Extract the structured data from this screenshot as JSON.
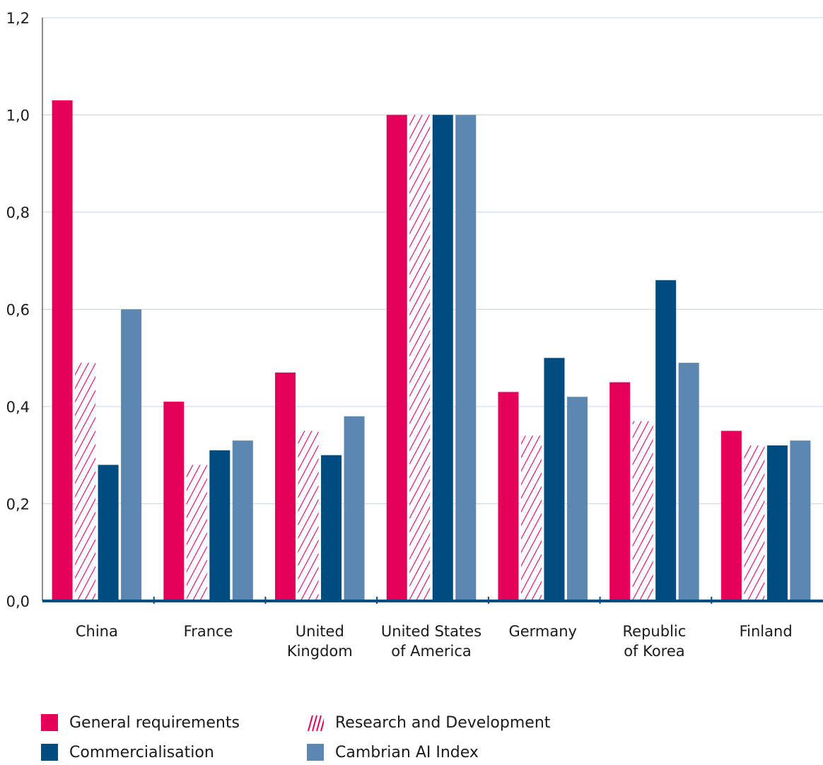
{
  "chart_data": {
    "type": "bar",
    "title": "",
    "xlabel": "",
    "ylabel": "",
    "ylim": [
      0,
      1.2
    ],
    "yticks": [
      "0,0",
      "0,2",
      "0,4",
      "0,6",
      "0,8",
      "1,0",
      "1,2"
    ],
    "grid": true,
    "legend_position": "bottom",
    "categories": [
      [
        "China"
      ],
      [
        "France"
      ],
      [
        "United",
        "Kingdom"
      ],
      [
        "United States",
        "of America"
      ],
      [
        "Germany"
      ],
      [
        "Republic",
        "of Korea"
      ],
      [
        "Finland"
      ]
    ],
    "series": [
      {
        "name": "General requirements",
        "color": "#e5005a",
        "pattern": "solid",
        "values": [
          1.03,
          0.41,
          0.47,
          1.0,
          0.43,
          0.45,
          0.35
        ]
      },
      {
        "name": "Research and Development",
        "color": "#e5005a",
        "pattern": "hatched",
        "values": [
          0.49,
          0.28,
          0.35,
          1.0,
          0.34,
          0.37,
          0.32
        ]
      },
      {
        "name": "Commercialisation",
        "color": "#004b80",
        "pattern": "solid",
        "values": [
          0.28,
          0.31,
          0.3,
          1.0,
          0.5,
          0.66,
          0.32
        ]
      },
      {
        "name": "Cambrian AI Index",
        "color": "#5b87b1",
        "pattern": "solid",
        "values": [
          0.6,
          0.33,
          0.38,
          1.0,
          0.42,
          0.49,
          0.33
        ]
      }
    ],
    "colors": {
      "axis": "#004b80",
      "grid": "#c9d6e3"
    }
  }
}
